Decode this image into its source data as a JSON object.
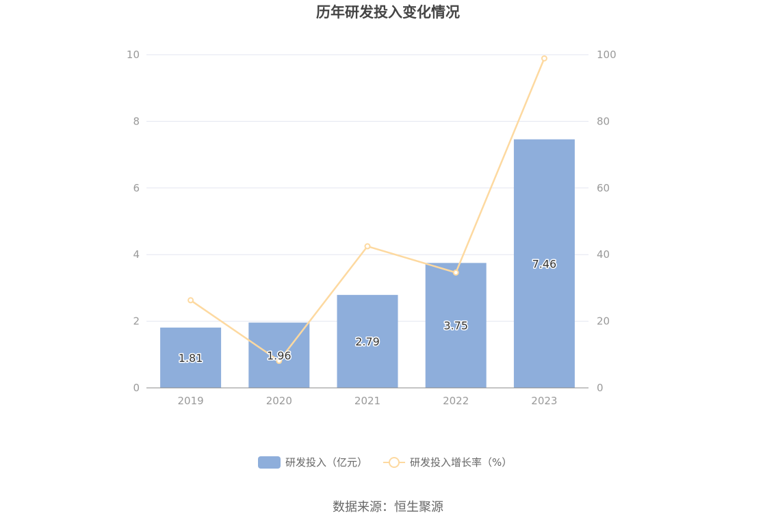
{
  "chart_data": {
    "type": "bar",
    "title": "历年研发投入变化情况",
    "categories": [
      "2019",
      "2020",
      "2021",
      "2022",
      "2023"
    ],
    "series": [
      {
        "name": "研发投入（亿元）",
        "type": "bar",
        "axis": "left",
        "values": [
          1.81,
          1.96,
          2.79,
          3.75,
          7.46
        ],
        "labels": [
          "1.81",
          "1.96",
          "2.79",
          "3.75",
          "7.46"
        ]
      },
      {
        "name": "研发投入增长率（%）",
        "type": "line",
        "axis": "right",
        "values": [
          26.3,
          8.1,
          42.5,
          34.6,
          98.9
        ]
      }
    ],
    "y_left": {
      "ylim": [
        0,
        10
      ],
      "ticks": [
        "0",
        "2",
        "4",
        "6",
        "8",
        "10"
      ]
    },
    "y_right": {
      "ylim": [
        0,
        100
      ],
      "ticks": [
        "0",
        "20",
        "40",
        "60",
        "80",
        "100"
      ]
    },
    "grid": true,
    "legend_position": "bottom",
    "source": "数据来源：恒生聚源"
  },
  "colors": {
    "bar": "#8eaedb",
    "line": "#fdd9a0",
    "grid": "#e3e6f0",
    "axis": "#888888"
  }
}
